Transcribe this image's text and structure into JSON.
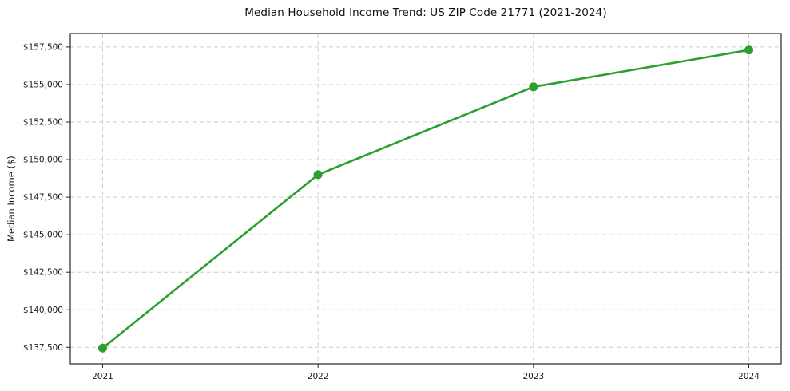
{
  "chart_data": {
    "type": "line",
    "title": "Median Household Income Trend: US ZIP Code 21771 (2021-2024)",
    "xlabel": "",
    "ylabel": "Median Income ($)",
    "x": [
      2021,
      2022,
      2023,
      2024
    ],
    "xtick_labels": [
      "2021",
      "2022",
      "2023",
      "2024"
    ],
    "series": [
      {
        "name": "median_household_income",
        "color": "#2ca02c",
        "values": [
          137450,
          149000,
          154850,
          157300
        ]
      }
    ],
    "yticks": [
      137500,
      140000,
      142500,
      145000,
      147500,
      150000,
      152500,
      155000,
      157500
    ],
    "ytick_labels": [
      "$137,500",
      "$140,000",
      "$142,500",
      "$145,000",
      "$147,500",
      "$150,000",
      "$152,500",
      "$155,000",
      "$157,500"
    ],
    "ylim": [
      136400,
      158400
    ],
    "xlim": [
      2020.85,
      2024.15
    ],
    "grid": true,
    "legend": false,
    "grid_color": "#cccccc",
    "axis_color": "#262626",
    "marker": "circle",
    "marker_radius": 5.5
  }
}
